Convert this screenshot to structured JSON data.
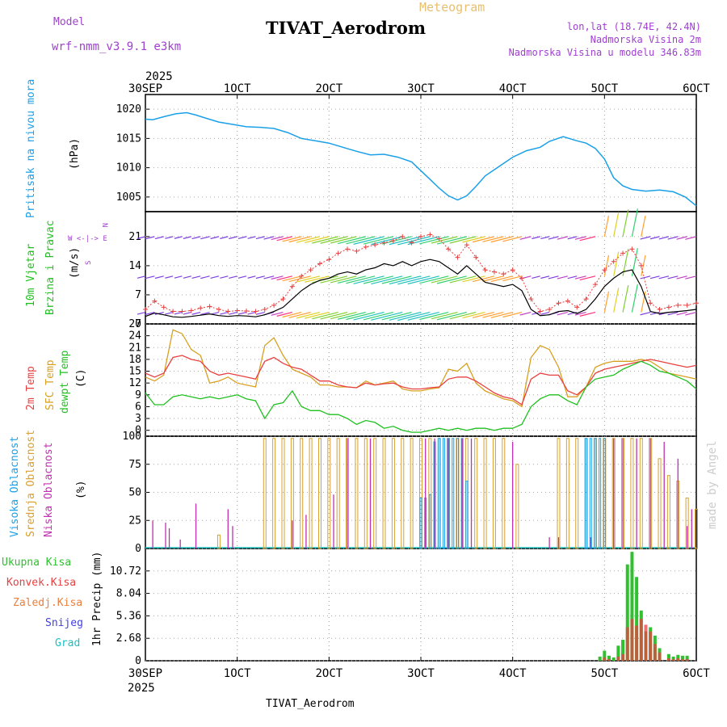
{
  "header": {
    "model_label": "Model",
    "model_name": "wrf-nmm_v3.9.1 e3km",
    "meteogram_label": "Meteogram",
    "station_title": "TIVAT_Aerodrom",
    "lonlat": "lon,lat (18.74E, 42.4N)",
    "altitude": "Nadmorska Visina 2m",
    "model_altitude": "Nadmorska Visina u modelu 346.83m",
    "footer_station": "TIVAT_Aerodrom",
    "credit": "made by Angel"
  },
  "colors": {
    "pressure": "#1aa0e8",
    "temp2m": "#e84040",
    "sfc": "#d8a020",
    "dewpt": "#20c020",
    "high_cloud": "#1aa0e8",
    "mid_cloud": "#d8a030",
    "low_cloud": "#c030b0",
    "total_precip": "#30c030",
    "conv_precip": "#e84040",
    "ice_precip": "#e88040",
    "snow": "#4040e8",
    "hail": "#20c0c0",
    "wind_speed": "#000000",
    "gust": "#e84040"
  },
  "chart_data": {
    "time_axis": {
      "year": "2025",
      "ticks": [
        "30SEP",
        "1OCT",
        "2OCT",
        "3OCT",
        "4OCT",
        "5OCT",
        "6OCT"
      ],
      "days_range": [
        0,
        6
      ]
    },
    "pressure": {
      "type": "line",
      "ylabel_main": "Pritisak na nivou mora",
      "ylabel_unit": "(hPa)",
      "yticks": [
        "1020",
        "1015",
        "1010",
        "1005"
      ],
      "ylim": [
        1002.5,
        1022.5
      ],
      "x": [
        0,
        0.08,
        0.2,
        0.33,
        0.45,
        0.55,
        0.65,
        0.8,
        0.95,
        1.1,
        1.25,
        1.4,
        1.55,
        1.7,
        1.85,
        2.0,
        2.15,
        2.3,
        2.45,
        2.6,
        2.75,
        2.9,
        3.0,
        3.1,
        3.2,
        3.3,
        3.4,
        3.5,
        3.6,
        3.7,
        3.85,
        4.0,
        4.15,
        4.3,
        4.4,
        4.55,
        4.7,
        4.8,
        4.9,
        5.0,
        5.1,
        5.2,
        5.3,
        5.45,
        5.6,
        5.75,
        5.88,
        6.0
      ],
      "y": [
        1018.3,
        1018.2,
        1018.7,
        1019.2,
        1019.4,
        1019.0,
        1018.5,
        1017.8,
        1017.4,
        1017.0,
        1016.9,
        1016.7,
        1016.0,
        1015.0,
        1014.6,
        1014.2,
        1013.5,
        1012.8,
        1012.2,
        1012.3,
        1011.8,
        1011.0,
        1009.5,
        1008.0,
        1006.5,
        1005.2,
        1004.5,
        1005.2,
        1006.8,
        1008.6,
        1010.2,
        1011.8,
        1012.9,
        1013.5,
        1014.5,
        1015.3,
        1014.6,
        1014.2,
        1013.3,
        1011.5,
        1008.3,
        1006.9,
        1006.3,
        1006.0,
        1006.2,
        1005.9,
        1005.0,
        1003.5
      ]
    },
    "wind": {
      "type": "line",
      "ylabel_main": "10m Vjetar",
      "ylabel_sub": "Brzina i Pravac",
      "ylabel_unit": "(m/s)",
      "compass_n": "N",
      "compass_row": "W <-|-> E",
      "compass_s": "S",
      "yticks": [
        "21",
        "14",
        "7",
        "0"
      ],
      "ylim": [
        0,
        27
      ],
      "x": [
        0,
        0.1,
        0.2,
        0.3,
        0.4,
        0.5,
        0.6,
        0.7,
        0.8,
        0.9,
        1.0,
        1.1,
        1.2,
        1.3,
        1.4,
        1.5,
        1.6,
        1.7,
        1.8,
        1.9,
        2.0,
        2.1,
        2.2,
        2.3,
        2.4,
        2.5,
        2.6,
        2.7,
        2.8,
        2.9,
        3.0,
        3.1,
        3.2,
        3.3,
        3.4,
        3.5,
        3.6,
        3.7,
        3.8,
        3.9,
        4.0,
        4.1,
        4.2,
        4.3,
        4.4,
        4.5,
        4.6,
        4.7,
        4.8,
        4.9,
        5.0,
        5.1,
        5.2,
        5.3,
        5.4,
        5.5,
        5.6,
        5.7,
        5.8,
        5.9,
        6.0
      ],
      "speed": [
        1.8,
        2.6,
        2.2,
        1.7,
        1.6,
        1.8,
        2.1,
        2.4,
        2.0,
        1.8,
        2.0,
        1.9,
        1.7,
        2.2,
        3.0,
        4.0,
        6.0,
        8.0,
        9.5,
        10.5,
        11.0,
        12.0,
        12.5,
        12.0,
        13.0,
        13.5,
        14.5,
        14.0,
        15.0,
        14.0,
        15.0,
        15.5,
        15.0,
        13.5,
        12.0,
        14.0,
        12.0,
        10.0,
        9.5,
        9.0,
        9.5,
        8.0,
        3.5,
        2.0,
        2.2,
        3.0,
        3.2,
        2.5,
        3.5,
        6.0,
        9.0,
        11.0,
        12.5,
        13.0,
        9.0,
        3.0,
        2.5,
        2.8,
        3.0,
        3.2,
        3.5
      ],
      "gust": [
        3.5,
        5.5,
        4.0,
        3.0,
        3.0,
        3.2,
        3.8,
        4.2,
        3.5,
        3.0,
        3.2,
        3.1,
        3.0,
        3.5,
        4.5,
        6.0,
        9.0,
        11.5,
        13.0,
        14.5,
        15.5,
        17.0,
        18.0,
        17.5,
        18.5,
        19.0,
        19.5,
        20.0,
        21.0,
        19.5,
        21.0,
        21.5,
        20.5,
        18.0,
        16.0,
        19.0,
        16.0,
        13.0,
        12.5,
        12.0,
        13.0,
        11.0,
        6.0,
        3.0,
        3.5,
        5.0,
        5.5,
        4.0,
        6.0,
        9.5,
        13.0,
        15.0,
        17.0,
        18.0,
        14.0,
        5.0,
        3.5,
        4.0,
        4.5,
        4.5,
        5.0
      ]
    },
    "temperature": {
      "type": "line",
      "ylabel_temp": "2m Temp",
      "ylabel_sfc": "SFC Temp",
      "ylabel_dew": "dewpt Temp",
      "ylabel_unit": "(C)",
      "yticks": [
        "27",
        "24",
        "21",
        "18",
        "15",
        "12",
        "9",
        "6",
        "3",
        "0"
      ],
      "ylim": [
        -1.5,
        27
      ],
      "x": [
        0,
        0.1,
        0.2,
        0.3,
        0.4,
        0.5,
        0.6,
        0.7,
        0.8,
        0.9,
        1.0,
        1.1,
        1.2,
        1.3,
        1.4,
        1.5,
        1.6,
        1.7,
        1.8,
        1.9,
        2.0,
        2.1,
        2.2,
        2.3,
        2.4,
        2.5,
        2.6,
        2.7,
        2.8,
        2.9,
        3.0,
        3.1,
        3.2,
        3.3,
        3.4,
        3.5,
        3.6,
        3.7,
        3.8,
        3.9,
        4.0,
        4.1,
        4.2,
        4.3,
        4.4,
        4.5,
        4.6,
        4.7,
        4.8,
        4.9,
        5.0,
        5.1,
        5.2,
        5.3,
        5.4,
        5.5,
        5.6,
        5.7,
        5.8,
        5.9,
        6.0
      ],
      "t2m": [
        14.5,
        13.5,
        14.5,
        18.5,
        19.0,
        18.0,
        17.5,
        15.0,
        14.0,
        14.5,
        14.0,
        13.5,
        13.0,
        17.5,
        18.5,
        17.0,
        16.0,
        15.5,
        14.0,
        12.5,
        12.5,
        11.5,
        11.0,
        10.8,
        12.0,
        11.5,
        11.8,
        12.0,
        11.0,
        10.5,
        10.5,
        10.8,
        11.0,
        13.0,
        13.5,
        13.5,
        12.5,
        11.0,
        9.5,
        8.5,
        8.0,
        6.5,
        13.0,
        14.5,
        14.0,
        14.0,
        10.0,
        9.0,
        11.0,
        14.5,
        15.5,
        16.0,
        16.5,
        17.0,
        17.5,
        18.0,
        17.5,
        17.0,
        16.5,
        16.0,
        16.5
      ],
      "sfc": [
        13.5,
        12.5,
        14.0,
        25.5,
        24.5,
        20.5,
        19.0,
        12.0,
        12.5,
        13.5,
        12.0,
        11.5,
        11.0,
        21.5,
        23.5,
        19.0,
        15.5,
        14.5,
        13.5,
        11.5,
        11.5,
        11.0,
        11.0,
        10.8,
        12.5,
        11.5,
        12.0,
        12.5,
        10.5,
        10.0,
        10.0,
        10.5,
        10.8,
        15.5,
        15.0,
        17.0,
        12.0,
        10.0,
        9.0,
        8.0,
        7.5,
        6.0,
        18.5,
        21.5,
        20.5,
        16.0,
        8.5,
        8.5,
        11.0,
        16.0,
        17.0,
        17.5,
        17.5,
        17.5,
        18.0,
        17.5,
        16.0,
        14.5,
        14.0,
        13.5,
        13.0
      ],
      "dewpt": [
        9.5,
        6.5,
        6.5,
        8.5,
        9.0,
        8.5,
        8.0,
        8.5,
        8.0,
        8.5,
        9.0,
        8.0,
        7.5,
        3.0,
        6.5,
        7.0,
        10.0,
        6.0,
        5.0,
        5.0,
        4.0,
        4.0,
        3.0,
        1.5,
        2.5,
        2.0,
        0.5,
        1.0,
        0.0,
        -0.5,
        -0.5,
        0.0,
        0.5,
        0.0,
        0.5,
        0.0,
        0.5,
        0.5,
        0.0,
        0.5,
        0.5,
        1.5,
        6.0,
        8.0,
        9.0,
        9.0,
        7.5,
        6.5,
        11.0,
        13.0,
        13.5,
        14.0,
        15.5,
        16.5,
        17.5,
        16.5,
        15.0,
        14.5,
        13.5,
        12.5,
        10.5
      ]
    },
    "cloud": {
      "type": "bar",
      "ylabel_high": "Visoka Oblacnost",
      "ylabel_mid": "Srednja Oblacnost",
      "ylabel_low": "Niska Oblacnost",
      "ylabel_unit": "(%)",
      "yticks": [
        "100",
        "75",
        "50",
        "25",
        "0"
      ],
      "ylim": [
        0,
        100
      ],
      "low_x": [
        0.08,
        0.22,
        0.26,
        0.38,
        0.55,
        0.9,
        0.95,
        1.6,
        1.75,
        2.05,
        2.2,
        2.45,
        3.05,
        3.15,
        3.3,
        3.45,
        3.55,
        4.0,
        4.4,
        4.5,
        4.85,
        5.1,
        5.2,
        5.35,
        5.5,
        5.65,
        5.8,
        5.9,
        5.95
      ],
      "low_v": [
        25,
        23,
        18,
        8,
        40,
        35,
        20,
        25,
        30,
        48,
        98,
        98,
        98,
        98,
        98,
        98,
        98,
        95,
        10,
        10,
        10,
        98,
        98,
        98,
        98,
        95,
        80,
        20,
        35
      ],
      "mid_x": [
        0.8,
        1.3,
        1.4,
        1.5,
        1.6,
        1.7,
        1.8,
        1.9,
        2.0,
        2.1,
        2.2,
        2.3,
        2.4,
        2.5,
        2.6,
        2.7,
        2.8,
        2.9,
        3.0,
        3.1,
        3.2,
        3.3,
        3.4,
        3.5,
        3.6,
        3.7,
        3.8,
        3.9,
        4.05,
        4.5,
        4.6,
        4.7,
        4.8,
        4.9,
        5.0,
        5.1,
        5.2,
        5.3,
        5.4,
        5.5,
        5.6,
        5.7,
        5.8,
        5.9,
        6.0
      ],
      "mid_v": [
        12,
        98,
        98,
        98,
        98,
        98,
        98,
        98,
        98,
        98,
        98,
        98,
        98,
        98,
        98,
        98,
        98,
        98,
        98,
        98,
        98,
        98,
        98,
        98,
        98,
        98,
        98,
        98,
        75,
        98,
        98,
        98,
        98,
        98,
        98,
        98,
        98,
        98,
        98,
        98,
        80,
        65,
        60,
        45,
        35
      ],
      "high_x": [
        3.0,
        3.05,
        3.1,
        3.15,
        3.2,
        3.25,
        3.3,
        3.35,
        3.4,
        3.45,
        3.5,
        4.8,
        4.85,
        4.9,
        4.95,
        5.0
      ],
      "high_v": [
        45,
        45,
        48,
        95,
        98,
        98,
        98,
        98,
        98,
        98,
        60,
        98,
        98,
        98,
        98,
        98
      ]
    },
    "precip": {
      "type": "bar",
      "ylabel": "1hr Precip (mm)",
      "legend": [
        "Ukupna Kisa",
        "Konvek.Kisa",
        "Zaledj.Kisa",
        "Snijeg",
        "Grad"
      ],
      "yticks": [
        "10.72",
        "8.04",
        "5.36",
        "2.68",
        "0"
      ],
      "ylim": [
        0,
        13.4
      ],
      "x": [
        4.95,
        5.0,
        5.05,
        5.1,
        5.15,
        5.2,
        5.25,
        5.3,
        5.35,
        5.4,
        5.45,
        5.5,
        5.55,
        5.6,
        5.7,
        5.75,
        5.8,
        5.85,
        5.9
      ],
      "total": [
        0.5,
        1.2,
        0.6,
        0.4,
        1.8,
        2.5,
        11.5,
        13.0,
        10.0,
        6.0,
        3.5,
        4.0,
        3.0,
        1.5,
        0.8,
        0.5,
        0.7,
        0.6,
        0.6
      ],
      "convective": [
        0,
        0.4,
        0.2,
        0,
        0.5,
        0.8,
        4.0,
        5.0,
        4.2,
        5.0,
        4.3,
        3.5,
        2.0,
        1.0,
        0.3,
        0.2,
        0.3,
        0.2,
        0.2
      ]
    }
  }
}
